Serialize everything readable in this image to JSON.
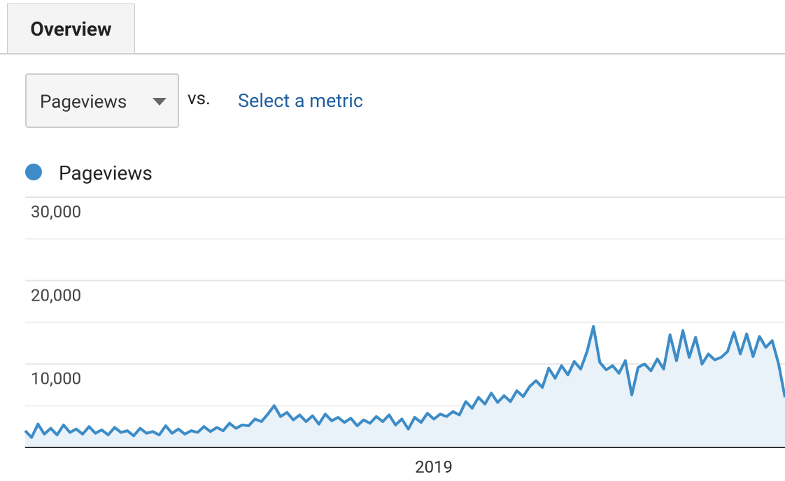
{
  "tab": "Overview",
  "metric_select": {
    "selected": "Pageviews"
  },
  "vs_label": "vs.",
  "compare_link": "Select a metric",
  "chart_data": {
    "type": "area",
    "categories": [
      null,
      null,
      null,
      null,
      null,
      null,
      null,
      null,
      null,
      null,
      null,
      null,
      null,
      null,
      null,
      null,
      null,
      null,
      null,
      null,
      null,
      null,
      null,
      null,
      null,
      null,
      null,
      null,
      null,
      null,
      null,
      null,
      null,
      null,
      null,
      null,
      null,
      null,
      null,
      null,
      null,
      null,
      null,
      null,
      null,
      null,
      null,
      null,
      null,
      null,
      null,
      null,
      null,
      null,
      null,
      null,
      null,
      null,
      null,
      null,
      null,
      null,
      null,
      null,
      "2019",
      null,
      null,
      null,
      null,
      null,
      null,
      null,
      null,
      null,
      null,
      null,
      null,
      null,
      null,
      null,
      null,
      null,
      null,
      null,
      null,
      null,
      null,
      null,
      null,
      null,
      null,
      null,
      null,
      null,
      null,
      null,
      null,
      null,
      null,
      null,
      null,
      null,
      null,
      null,
      null,
      null,
      null,
      null,
      null,
      null,
      null,
      null,
      null,
      null,
      null,
      null,
      null,
      null,
      null,
      null
    ],
    "series": [
      {
        "name": "Pageviews",
        "color": "#3d8cc7",
        "values": [
          2000,
          1200,
          2800,
          1600,
          2300,
          1500,
          2700,
          1800,
          2200,
          1600,
          2500,
          1700,
          2100,
          1500,
          2400,
          1800,
          2000,
          1400,
          2300,
          1700,
          1900,
          1500,
          2600,
          1700,
          2200,
          1600,
          2000,
          1800,
          2500,
          1900,
          2400,
          2000,
          2900,
          2300,
          2700,
          2600,
          3400,
          3100,
          4000,
          5000,
          3700,
          4200,
          3300,
          3900,
          3100,
          3800,
          2800,
          4000,
          3200,
          3600,
          3000,
          3500,
          2600,
          3300,
          2900,
          3700,
          3100,
          3900,
          2700,
          3400,
          2200,
          3600,
          3000,
          4100,
          3400,
          4000,
          3700,
          4300,
          3900,
          5500,
          4700,
          6000,
          5200,
          6500,
          5400,
          6200,
          5500,
          6800,
          6100,
          7300,
          8000,
          7200,
          9500,
          8300,
          9800,
          8700,
          10300,
          9400,
          11500,
          14500,
          10200,
          9300,
          9800,
          8900,
          10400,
          6300,
          9600,
          10000,
          9200,
          10600,
          9400,
          13500,
          10400,
          14000,
          10800,
          13200,
          10000,
          11200,
          10500,
          10800,
          11500,
          13800,
          11200,
          13600,
          10900,
          13300,
          12000,
          12800,
          10000,
          6000
        ]
      }
    ],
    "ylim": [
      0,
      30000
    ],
    "yticks": [
      {
        "value": 10000,
        "label": "10,000"
      },
      {
        "value": 20000,
        "label": "20,000"
      },
      {
        "value": 30000,
        "label": "30,000"
      }
    ],
    "minor_yticks": [
      5000,
      15000,
      25000
    ],
    "grid": true,
    "area_fill": "#e9f1f9"
  }
}
